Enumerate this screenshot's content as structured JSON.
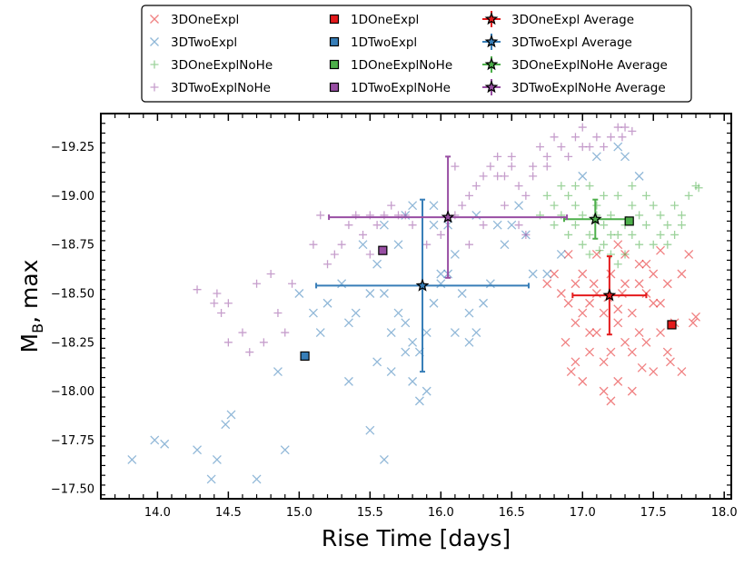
{
  "chart_data": {
    "type": "scatter",
    "xlabel": "Rise Time [days]",
    "ylabel_main": "M",
    "ylabel_sub": "B",
    "ylabel_rest": ", max",
    "xlim": [
      13.6,
      18.05
    ],
    "ylim": [
      -17.45,
      -19.42
    ],
    "y_inverted": true,
    "x_ticks": [
      14.0,
      14.5,
      15.0,
      15.5,
      16.0,
      16.5,
      17.0,
      17.5,
      18.0
    ],
    "x_tick_labels": [
      "14.0",
      "14.5",
      "15.0",
      "15.5",
      "16.0",
      "16.5",
      "17.0",
      "17.5",
      "18.0"
    ],
    "y_ticks": [
      -17.5,
      -17.75,
      -18.0,
      -18.25,
      -18.5,
      -18.75,
      -19.0,
      -19.25
    ],
    "y_tick_labels": [
      "−17.50",
      "−17.75",
      "−18.00",
      "−18.25",
      "−18.50",
      "−18.75",
      "−19.00",
      "−19.25"
    ],
    "grid": false,
    "legend_position": "top, outside plot, 3 columns",
    "legend": [
      {
        "label": "3DOneExpl",
        "kind": "x",
        "color": "#e41a1c"
      },
      {
        "label": "3DTwoExpl",
        "kind": "x",
        "color": "#377eb8"
      },
      {
        "label": "3DOneExplNoHe",
        "kind": "plus",
        "color": "#4daf4a"
      },
      {
        "label": "3DTwoExplNoHe",
        "kind": "plus",
        "color": "#984ea3"
      },
      {
        "label": "1DOneExpl",
        "kind": "square",
        "color": "#e41a1c"
      },
      {
        "label": "1DTwoExpl",
        "kind": "square",
        "color": "#377eb8"
      },
      {
        "label": "1DOneExplNoHe",
        "kind": "square",
        "color": "#4daf4a"
      },
      {
        "label": "1DTwoExplNoHe",
        "kind": "square",
        "color": "#984ea3"
      },
      {
        "label": "3DOneExpl Average",
        "kind": "star",
        "color": "#e41a1c"
      },
      {
        "label": "3DTwoExpl Average",
        "kind": "star",
        "color": "#377eb8"
      },
      {
        "label": "3DOneExplNoHe Average",
        "kind": "star",
        "color": "#4daf4a"
      },
      {
        "label": "3DTwoExplNoHe Average",
        "kind": "star",
        "color": "#984ea3"
      }
    ],
    "series": [
      {
        "name": "3DOneExpl",
        "marker": "x",
        "color": "#e41a1c",
        "points": [
          [
            16.9,
            -18.7
          ],
          [
            16.95,
            -18.55
          ],
          [
            17.0,
            -18.6
          ],
          [
            17.05,
            -18.45
          ],
          [
            17.1,
            -18.5
          ],
          [
            17.15,
            -18.4
          ],
          [
            16.85,
            -18.5
          ],
          [
            16.95,
            -18.35
          ],
          [
            17.05,
            -18.3
          ],
          [
            17.2,
            -18.6
          ],
          [
            17.25,
            -18.35
          ],
          [
            17.3,
            -18.55
          ],
          [
            17.35,
            -18.4
          ],
          [
            17.4,
            -18.3
          ],
          [
            17.45,
            -18.5
          ],
          [
            17.5,
            -18.45
          ],
          [
            17.3,
            -18.25
          ],
          [
            17.2,
            -18.2
          ],
          [
            17.15,
            -18.15
          ],
          [
            17.35,
            -18.2
          ],
          [
            17.45,
            -18.25
          ],
          [
            17.55,
            -18.3
          ],
          [
            17.6,
            -18.2
          ],
          [
            17.05,
            -18.2
          ],
          [
            16.95,
            -18.15
          ],
          [
            17.0,
            -18.05
          ],
          [
            17.15,
            -18.0
          ],
          [
            17.2,
            -17.95
          ],
          [
            17.25,
            -18.05
          ],
          [
            17.5,
            -18.1
          ],
          [
            17.6,
            -18.55
          ],
          [
            17.7,
            -18.6
          ],
          [
            17.65,
            -18.35
          ],
          [
            17.78,
            -18.35
          ],
          [
            17.8,
            -18.38
          ],
          [
            17.75,
            -18.7
          ],
          [
            17.55,
            -18.72
          ],
          [
            17.4,
            -18.65
          ],
          [
            17.25,
            -18.75
          ],
          [
            17.1,
            -18.7
          ],
          [
            16.8,
            -18.6
          ],
          [
            16.75,
            -18.55
          ],
          [
            16.9,
            -18.45
          ],
          [
            17.0,
            -18.4
          ],
          [
            17.1,
            -18.3
          ],
          [
            17.25,
            -18.42
          ],
          [
            17.4,
            -18.55
          ],
          [
            17.5,
            -18.6
          ],
          [
            17.45,
            -18.65
          ],
          [
            17.3,
            -18.7
          ],
          [
            16.88,
            -18.25
          ],
          [
            17.35,
            -18.0
          ],
          [
            17.62,
            -18.15
          ],
          [
            17.7,
            -18.1
          ],
          [
            16.92,
            -18.1
          ],
          [
            17.08,
            -18.55
          ],
          [
            17.18,
            -18.48
          ],
          [
            17.28,
            -18.5
          ],
          [
            17.42,
            -18.12
          ],
          [
            17.55,
            -18.45
          ]
        ]
      },
      {
        "name": "3DTwoExpl",
        "marker": "x",
        "color": "#377eb8",
        "points": [
          [
            13.82,
            -17.65
          ],
          [
            13.98,
            -17.75
          ],
          [
            14.05,
            -17.73
          ],
          [
            14.28,
            -17.7
          ],
          [
            14.38,
            -17.55
          ],
          [
            14.42,
            -17.65
          ],
          [
            14.48,
            -17.83
          ],
          [
            14.52,
            -17.88
          ],
          [
            14.7,
            -17.55
          ],
          [
            14.9,
            -17.7
          ],
          [
            14.85,
            -18.1
          ],
          [
            15.0,
            -18.5
          ],
          [
            15.1,
            -18.4
          ],
          [
            15.15,
            -18.3
          ],
          [
            15.2,
            -18.45
          ],
          [
            15.3,
            -18.55
          ],
          [
            15.35,
            -18.05
          ],
          [
            15.45,
            -18.75
          ],
          [
            15.5,
            -18.5
          ],
          [
            15.55,
            -18.65
          ],
          [
            15.6,
            -18.5
          ],
          [
            15.65,
            -18.3
          ],
          [
            15.7,
            -18.4
          ],
          [
            15.75,
            -18.35
          ],
          [
            15.8,
            -18.25
          ],
          [
            15.85,
            -18.2
          ],
          [
            15.9,
            -18.3
          ],
          [
            15.95,
            -18.45
          ],
          [
            16.0,
            -18.6
          ],
          [
            16.05,
            -18.85
          ],
          [
            16.1,
            -18.7
          ],
          [
            16.15,
            -18.5
          ],
          [
            16.2,
            -18.4
          ],
          [
            16.25,
            -18.3
          ],
          [
            16.3,
            -18.45
          ],
          [
            16.35,
            -18.55
          ],
          [
            16.45,
            -18.75
          ],
          [
            16.5,
            -18.85
          ],
          [
            16.55,
            -18.95
          ],
          [
            16.6,
            -18.8
          ],
          [
            16.65,
            -18.6
          ],
          [
            16.75,
            -18.6
          ],
          [
            16.85,
            -18.7
          ],
          [
            17.0,
            -19.1
          ],
          [
            17.1,
            -19.2
          ],
          [
            17.3,
            -19.2
          ],
          [
            17.4,
            -19.1
          ],
          [
            17.25,
            -19.25
          ],
          [
            15.5,
            -17.8
          ],
          [
            15.6,
            -17.65
          ],
          [
            15.75,
            -18.2
          ],
          [
            15.8,
            -18.05
          ],
          [
            15.85,
            -17.95
          ],
          [
            15.55,
            -18.15
          ],
          [
            15.65,
            -18.1
          ],
          [
            15.9,
            -18.0
          ],
          [
            16.0,
            -18.55
          ],
          [
            16.05,
            -18.6
          ],
          [
            15.95,
            -18.85
          ],
          [
            15.7,
            -18.75
          ],
          [
            16.1,
            -18.3
          ],
          [
            16.2,
            -18.25
          ],
          [
            15.4,
            -18.4
          ],
          [
            15.35,
            -18.35
          ],
          [
            15.6,
            -18.85
          ],
          [
            15.75,
            -18.9
          ],
          [
            15.8,
            -18.95
          ],
          [
            15.95,
            -18.95
          ],
          [
            16.25,
            -18.9
          ],
          [
            16.4,
            -18.85
          ]
        ]
      },
      {
        "name": "3DOneExplNoHe",
        "marker": "plus",
        "color": "#4daf4a",
        "points": [
          [
            16.75,
            -19.0
          ],
          [
            16.8,
            -18.95
          ],
          [
            16.85,
            -18.9
          ],
          [
            16.9,
            -19.0
          ],
          [
            16.95,
            -18.85
          ],
          [
            17.0,
            -18.9
          ],
          [
            17.05,
            -18.8
          ],
          [
            17.1,
            -18.95
          ],
          [
            17.15,
            -18.85
          ],
          [
            17.2,
            -18.9
          ],
          [
            17.25,
            -18.8
          ],
          [
            17.3,
            -18.85
          ],
          [
            17.35,
            -18.95
          ],
          [
            17.4,
            -18.9
          ],
          [
            17.45,
            -19.0
          ],
          [
            17.5,
            -18.95
          ],
          [
            17.55,
            -18.9
          ],
          [
            17.6,
            -18.85
          ],
          [
            17.65,
            -18.95
          ],
          [
            17.7,
            -18.9
          ],
          [
            17.75,
            -19.0
          ],
          [
            17.8,
            -19.05
          ],
          [
            17.82,
            -19.04
          ],
          [
            16.9,
            -18.8
          ],
          [
            17.0,
            -18.75
          ],
          [
            17.05,
            -18.7
          ],
          [
            17.15,
            -18.75
          ],
          [
            17.2,
            -18.7
          ],
          [
            17.25,
            -18.65
          ],
          [
            17.3,
            -18.7
          ],
          [
            16.85,
            -19.05
          ],
          [
            16.95,
            -19.05
          ],
          [
            17.05,
            -19.05
          ],
          [
            17.15,
            -19.0
          ],
          [
            17.25,
            -19.0
          ],
          [
            17.35,
            -19.05
          ],
          [
            17.45,
            -18.85
          ],
          [
            17.5,
            -18.75
          ],
          [
            16.95,
            -18.95
          ],
          [
            17.1,
            -18.9
          ],
          [
            17.2,
            -18.8
          ],
          [
            17.35,
            -18.8
          ],
          [
            17.4,
            -18.75
          ],
          [
            16.8,
            -18.85
          ],
          [
            17.55,
            -18.8
          ],
          [
            17.6,
            -18.75
          ],
          [
            17.65,
            -18.8
          ],
          [
            17.7,
            -18.85
          ],
          [
            16.7,
            -18.9
          ],
          [
            17.12,
            -18.72
          ]
        ]
      },
      {
        "name": "3DTwoExplNoHe",
        "marker": "plus",
        "color": "#984ea3",
        "points": [
          [
            14.28,
            -18.52
          ],
          [
            14.4,
            -18.45
          ],
          [
            14.42,
            -18.5
          ],
          [
            14.45,
            -18.4
          ],
          [
            14.5,
            -18.45
          ],
          [
            14.6,
            -18.3
          ],
          [
            14.7,
            -18.55
          ],
          [
            14.8,
            -18.6
          ],
          [
            14.85,
            -18.4
          ],
          [
            14.5,
            -18.25
          ],
          [
            14.65,
            -18.2
          ],
          [
            14.75,
            -18.25
          ],
          [
            14.9,
            -18.3
          ],
          [
            14.95,
            -18.55
          ],
          [
            15.1,
            -18.75
          ],
          [
            15.2,
            -18.65
          ],
          [
            15.25,
            -18.7
          ],
          [
            15.3,
            -18.75
          ],
          [
            15.35,
            -18.85
          ],
          [
            15.4,
            -18.9
          ],
          [
            15.45,
            -18.8
          ],
          [
            15.5,
            -18.7
          ],
          [
            15.55,
            -18.85
          ],
          [
            15.6,
            -18.9
          ],
          [
            15.65,
            -18.95
          ],
          [
            15.75,
            -18.9
          ],
          [
            15.8,
            -18.85
          ],
          [
            15.9,
            -18.75
          ],
          [
            16.0,
            -18.8
          ],
          [
            16.1,
            -18.9
          ],
          [
            16.15,
            -18.95
          ],
          [
            16.2,
            -19.0
          ],
          [
            16.25,
            -19.05
          ],
          [
            16.3,
            -19.1
          ],
          [
            16.35,
            -19.15
          ],
          [
            16.4,
            -19.2
          ],
          [
            16.45,
            -19.1
          ],
          [
            16.5,
            -19.15
          ],
          [
            16.55,
            -19.05
          ],
          [
            16.6,
            -19.0
          ],
          [
            16.65,
            -19.1
          ],
          [
            16.7,
            -19.25
          ],
          [
            16.75,
            -19.2
          ],
          [
            16.8,
            -19.3
          ],
          [
            16.85,
            -19.25
          ],
          [
            16.9,
            -19.2
          ],
          [
            16.95,
            -19.3
          ],
          [
            17.0,
            -19.35
          ],
          [
            17.05,
            -19.25
          ],
          [
            17.1,
            -19.3
          ],
          [
            17.15,
            -19.25
          ],
          [
            17.2,
            -19.3
          ],
          [
            17.25,
            -19.35
          ],
          [
            17.3,
            -19.35
          ],
          [
            16.5,
            -19.2
          ],
          [
            16.55,
            -18.85
          ],
          [
            16.6,
            -18.8
          ],
          [
            16.45,
            -18.95
          ],
          [
            16.3,
            -18.85
          ],
          [
            16.2,
            -18.75
          ],
          [
            15.15,
            -18.9
          ],
          [
            15.5,
            -18.9
          ],
          [
            15.7,
            -18.9
          ],
          [
            16.1,
            -19.15
          ],
          [
            16.4,
            -19.1
          ],
          [
            16.65,
            -19.15
          ],
          [
            16.75,
            -19.15
          ],
          [
            17.0,
            -19.25
          ],
          [
            17.35,
            -19.33
          ],
          [
            17.28,
            -19.3
          ]
        ]
      }
    ],
    "one_d_points": [
      {
        "name": "1DOneExpl",
        "color": "#e41a1c",
        "x": 17.63,
        "y": -18.34
      },
      {
        "name": "1DTwoExpl",
        "color": "#377eb8",
        "x": 15.04,
        "y": -18.18
      },
      {
        "name": "1DOneExplNoHe",
        "color": "#4daf4a",
        "x": 17.33,
        "y": -18.87
      },
      {
        "name": "1DTwoExplNoHe",
        "color": "#984ea3",
        "x": 15.59,
        "y": -18.72
      }
    ],
    "averages": [
      {
        "name": "3DOneExpl Average",
        "color": "#e41a1c",
        "x": 17.19,
        "y": -18.49,
        "xerr": 0.26,
        "yerr": 0.2
      },
      {
        "name": "3DTwoExpl Average",
        "color": "#377eb8",
        "x": 15.87,
        "y": -18.54,
        "xerr": 0.75,
        "yerr": 0.44
      },
      {
        "name": "3DOneExplNoHe Average",
        "color": "#4daf4a",
        "x": 17.09,
        "y": -18.88,
        "xerr": 0.22,
        "yerr": 0.1
      },
      {
        "name": "3DTwoExplNoHe Average",
        "color": "#984ea3",
        "x": 16.05,
        "y": -18.89,
        "xerr": 0.84,
        "yerr": 0.31
      }
    ]
  }
}
